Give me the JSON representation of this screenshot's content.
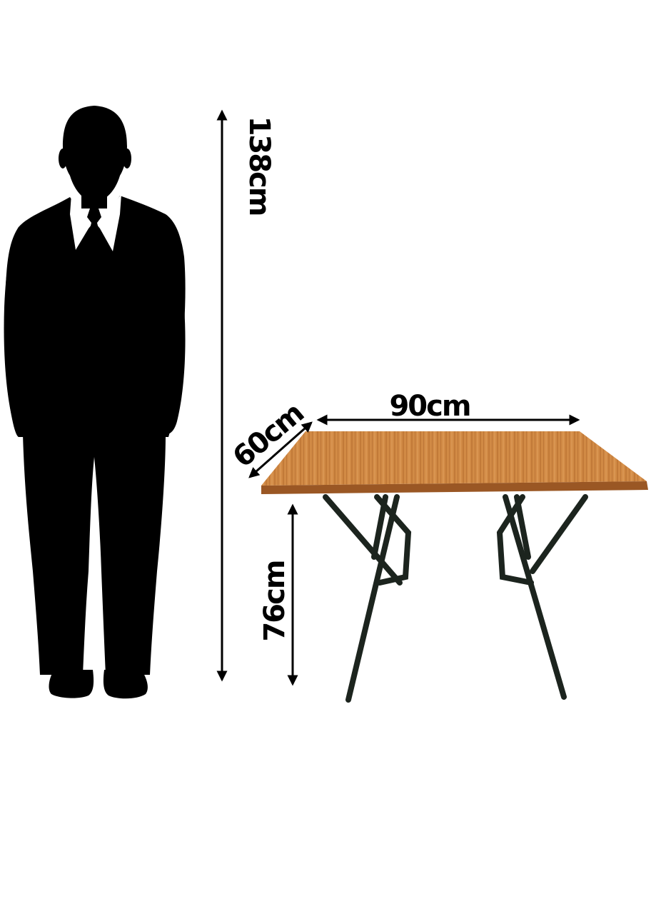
{
  "dimensions": {
    "person_height": "138cm",
    "table_width": "90cm",
    "table_depth": "60cm",
    "table_height": "76cm"
  },
  "colors": {
    "silhouette": "#000000",
    "shirt": "#ffffff",
    "arrow": "#000000",
    "wood_light": "#d18a45",
    "wood_dark": "#b26a2e",
    "wood_edge": "#9a5724",
    "legs": "#1c241e",
    "background": "#ffffff"
  },
  "icons": {
    "person": "person-silhouette-icon",
    "table": "folding-table-icon"
  }
}
